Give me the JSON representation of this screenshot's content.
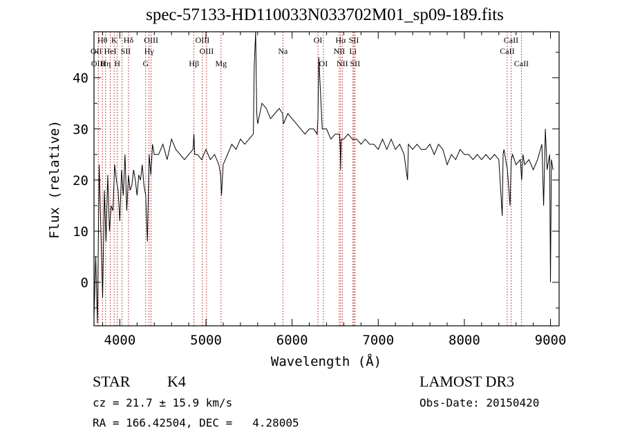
{
  "title": "spec-57133-HD110033N033702M01_sp09-189.fits",
  "chart_data": {
    "type": "line",
    "title": "spec-57133-HD110033N033702M01_sp09-189.fits",
    "xlabel": "Wavelength (Å)",
    "ylabel": "Flux (relative)",
    "xlim": [
      3700,
      9100
    ],
    "ylim": [
      -8.5,
      49
    ],
    "xticks": [
      4000,
      5000,
      6000,
      7000,
      8000,
      9000
    ],
    "yticks": [
      0,
      10,
      20,
      30,
      40
    ],
    "series": [
      {
        "name": "flux",
        "x": [
          3700,
          3720,
          3740,
          3760,
          3780,
          3800,
          3820,
          3840,
          3860,
          3880,
          3900,
          3920,
          3940,
          3960,
          3980,
          4000,
          4020,
          4040,
          4060,
          4080,
          4100,
          4120,
          4140,
          4160,
          4180,
          4200,
          4220,
          4240,
          4260,
          4280,
          4300,
          4320,
          4340,
          4360,
          4380,
          4400,
          4450,
          4500,
          4550,
          4600,
          4650,
          4700,
          4750,
          4800,
          4850,
          4860,
          4870,
          4900,
          4950,
          5000,
          5050,
          5100,
          5150,
          5170,
          5180,
          5200,
          5250,
          5300,
          5350,
          5400,
          5450,
          5500,
          5550,
          5560,
          5577,
          5590,
          5600,
          5650,
          5700,
          5750,
          5800,
          5850,
          5890,
          5900,
          5950,
          6000,
          6050,
          6100,
          6150,
          6200,
          6250,
          6290,
          6300,
          6310,
          6350,
          6400,
          6450,
          6500,
          6550,
          6560,
          6563,
          6570,
          6600,
          6650,
          6700,
          6750,
          6800,
          6850,
          6900,
          6950,
          7000,
          7050,
          7100,
          7150,
          7200,
          7250,
          7300,
          7340,
          7350,
          7400,
          7450,
          7500,
          7550,
          7600,
          7650,
          7700,
          7750,
          7800,
          7850,
          7900,
          7950,
          8000,
          8050,
          8100,
          8150,
          8200,
          8250,
          8300,
          8350,
          8400,
          8440,
          8450,
          8460,
          8500,
          8530,
          8545,
          8560,
          8600,
          8650,
          8665,
          8680,
          8700,
          8750,
          8800,
          8850,
          8900,
          8920,
          8940,
          8960,
          8990,
          9000,
          9010,
          9030
        ],
        "y": [
          -7,
          5,
          -8,
          23,
          10,
          -3,
          18,
          8,
          21,
          10,
          15,
          14,
          23,
          20,
          18,
          12,
          22,
          17,
          25,
          14,
          21,
          18,
          19,
          22,
          20,
          17,
          21,
          20,
          23,
          19,
          17,
          8,
          25,
          21,
          27,
          25,
          25,
          27,
          24,
          28,
          26,
          25,
          24,
          25,
          26,
          29,
          25,
          25,
          24,
          26,
          24,
          25,
          23,
          21,
          17,
          23,
          25,
          27,
          26,
          28,
          27,
          28,
          29,
          42,
          49,
          33,
          31,
          35,
          34,
          32,
          33,
          34,
          33,
          31,
          33,
          32,
          31,
          30,
          29,
          30,
          30,
          29,
          32,
          44,
          30,
          30,
          28,
          29,
          29,
          26,
          22,
          28,
          28,
          29,
          28,
          28,
          27,
          28,
          27,
          27,
          26,
          28,
          26,
          28,
          26,
          27,
          25,
          20,
          27,
          26,
          27,
          26,
          26,
          27,
          25,
          27,
          26,
          23,
          25,
          24,
          26,
          25,
          25,
          24,
          25,
          24,
          25,
          24,
          25,
          24,
          13,
          25,
          26,
          22,
          15,
          24,
          25,
          23,
          24,
          20,
          25,
          23,
          24,
          22,
          24,
          27,
          15,
          30,
          22,
          25,
          0,
          24,
          22
        ]
      }
    ],
    "lines_dashed": [
      3750,
      3798,
      3835,
      3889,
      3934,
      3970,
      4026,
      4101,
      4300,
      4340,
      4363,
      4861,
      4959,
      5007,
      5175,
      5893,
      6300,
      6363,
      6548,
      6563,
      6583,
      6707,
      6717,
      6731,
      8498,
      8542,
      8662
    ],
    "line_labels": [
      {
        "text": "Hθ",
        "wl": 3798,
        "row": 1
      },
      {
        "text": "K",
        "wl": 3934,
        "row": 1
      },
      {
        "text": "Hδ",
        "wl": 4101,
        "row": 1
      },
      {
        "text": "OIII",
        "wl": 4363,
        "row": 1
      },
      {
        "text": "OIII",
        "wl": 4959,
        "row": 1
      },
      {
        "text": "OI",
        "wl": 6300,
        "row": 1
      },
      {
        "text": "Hα",
        "wl": 6563,
        "row": 1
      },
      {
        "text": "SII",
        "wl": 6717,
        "row": 1
      },
      {
        "text": "CaII",
        "wl": 8542,
        "row": 1
      },
      {
        "text": "OII",
        "wl": 3727,
        "row": 2
      },
      {
        "text": "HeI",
        "wl": 3889,
        "row": 2
      },
      {
        "text": "SII",
        "wl": 4069,
        "row": 2
      },
      {
        "text": "Hγ",
        "wl": 4340,
        "row": 2
      },
      {
        "text": "OIII",
        "wl": 5007,
        "row": 2
      },
      {
        "text": "Na",
        "wl": 5893,
        "row": 2
      },
      {
        "text": "NII",
        "wl": 6548,
        "row": 2
      },
      {
        "text": "Li",
        "wl": 6707,
        "row": 2
      },
      {
        "text": "CaII",
        "wl": 8498,
        "row": 2
      },
      {
        "text": "OIII",
        "wl": 3750,
        "row": 3
      },
      {
        "text": "Hη",
        "wl": 3835,
        "row": 3
      },
      {
        "text": "H",
        "wl": 3970,
        "row": 3
      },
      {
        "text": "G",
        "wl": 4300,
        "row": 3
      },
      {
        "text": "Hβ",
        "wl": 4861,
        "row": 3
      },
      {
        "text": "Mg",
        "wl": 5175,
        "row": 3
      },
      {
        "text": "OI",
        "wl": 6363,
        "row": 3
      },
      {
        "text": "NII",
        "wl": 6583,
        "row": 3
      },
      {
        "text": "SII",
        "wl": 6731,
        "row": 3
      },
      {
        "text": "CaII",
        "wl": 8662,
        "row": 3
      }
    ]
  },
  "info": {
    "class_label": "STAR",
    "subclass": "K4",
    "survey": "LAMOST DR3",
    "cz": "cz = 21.7 ± 15.9 km/s",
    "obs_date": "Obs-Date: 20150420",
    "radec": "RA = 166.42504, DEC =   4.28005"
  }
}
